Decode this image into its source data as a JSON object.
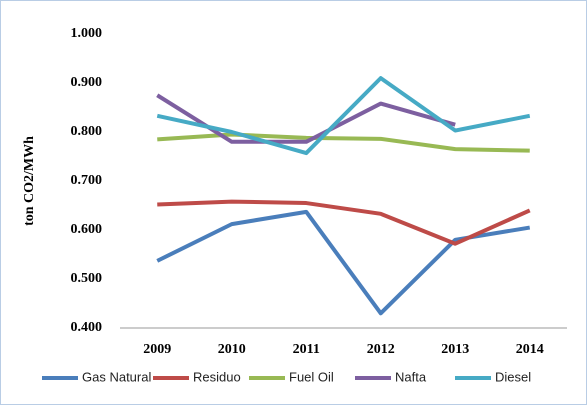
{
  "chart_data": {
    "type": "line",
    "y_label": "ton CO2/MWh",
    "categories": [
      "2009",
      "2010",
      "2011",
      "2012",
      "2013",
      "2014"
    ],
    "series": [
      {
        "name": "Gas Natural",
        "color": "#4a7ebb",
        "values": [
          0.537,
          0.612,
          0.637,
          0.43,
          0.58,
          0.605
        ]
      },
      {
        "name": "Residuo",
        "color": "#be4b48",
        "values": [
          0.652,
          0.658,
          0.655,
          0.633,
          0.572,
          0.64
        ]
      },
      {
        "name": "Fuel Oil",
        "color": "#98b954",
        "values": [
          0.785,
          0.795,
          0.788,
          0.786,
          0.765,
          0.762
        ]
      },
      {
        "name": "Nafta",
        "color": "#7d5fa0",
        "values": [
          0.875,
          0.78,
          0.78,
          0.858,
          0.815,
          null
        ]
      },
      {
        "name": "Diesel",
        "color": "#46aac5",
        "values": [
          0.833,
          0.8,
          0.757,
          0.91,
          0.803,
          0.833
        ]
      }
    ],
    "ylim": [
      0.4,
      1.0
    ],
    "yticks": [
      {
        "value": 0.4,
        "label": "0.400"
      },
      {
        "value": 0.5,
        "label": "0.500"
      },
      {
        "value": 0.6,
        "label": "0.600"
      },
      {
        "value": 0.7,
        "label": "0.700"
      },
      {
        "value": 0.8,
        "label": "0.800"
      },
      {
        "value": 0.9,
        "label": "0.900"
      },
      {
        "value": 1.0,
        "label": "1.000"
      }
    ],
    "grid": false,
    "legend": "bottom"
  }
}
